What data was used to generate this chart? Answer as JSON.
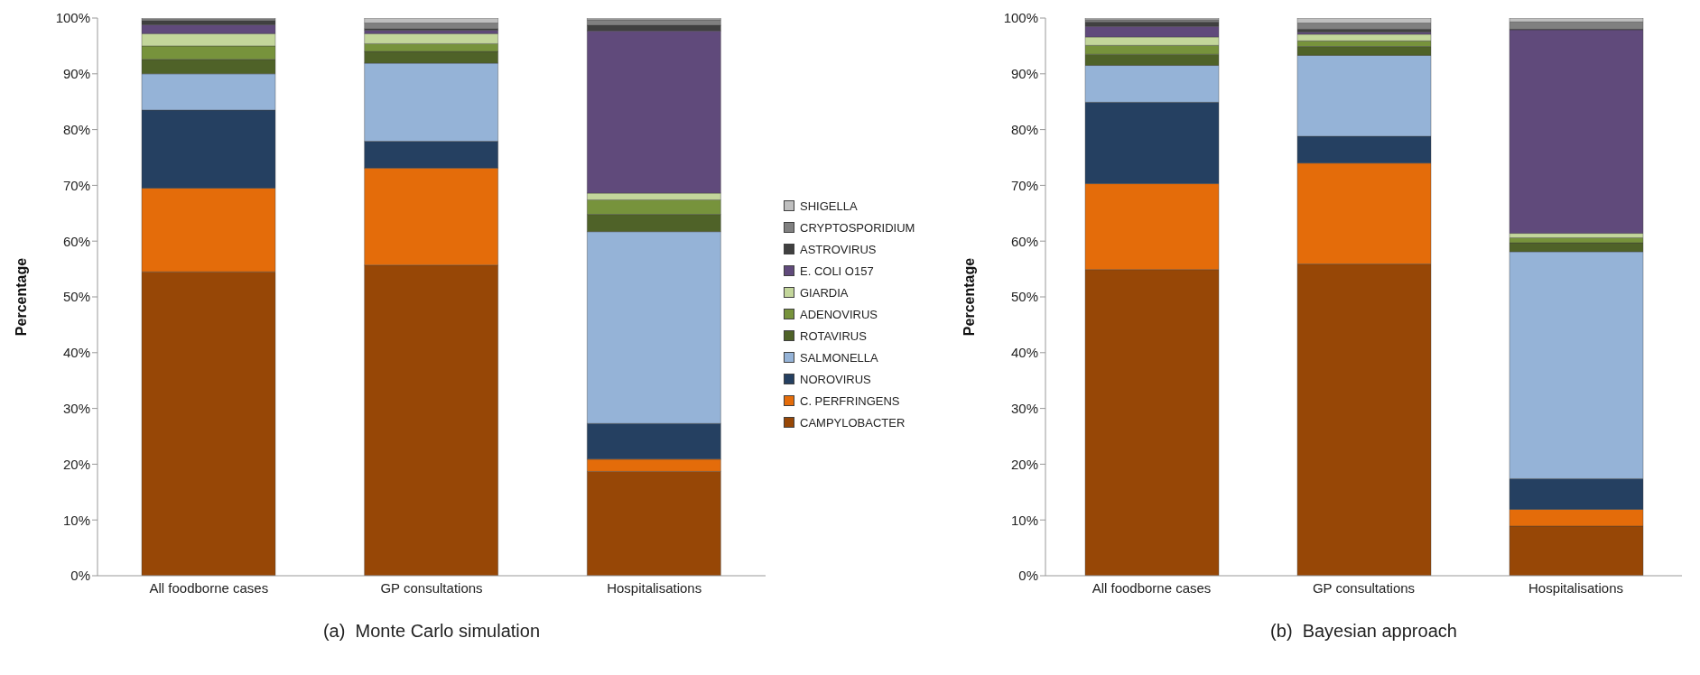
{
  "chart_data": [
    {
      "type": "bar",
      "title": "(a)  Monte Carlo simulation",
      "ylabel": "Percentage",
      "stacked": true,
      "legend": "right",
      "grid": false,
      "categories": [
        "All foodborne cases",
        "GP consultations",
        "Hospitalisations"
      ],
      "ylim": [
        0,
        100
      ],
      "yticks": [
        {
          "value": 0,
          "label": "0%"
        },
        {
          "value": 10,
          "label": "10%"
        },
        {
          "value": 20,
          "label": "20%"
        },
        {
          "value": 30,
          "label": "30%"
        },
        {
          "value": 40,
          "label": "40%"
        },
        {
          "value": 50,
          "label": "50%"
        },
        {
          "value": 60,
          "label": "60%"
        },
        {
          "value": 70,
          "label": "70%"
        },
        {
          "value": 80,
          "label": "80%"
        },
        {
          "value": 90,
          "label": "90%"
        },
        {
          "value": 100,
          "label": "100%"
        }
      ],
      "series": [
        {
          "name": "CAMPYLOBACTER",
          "color": "#974706",
          "values": [
            54.5,
            55.7,
            18.7
          ]
        },
        {
          "name": "C. PERFRINGENS",
          "color": "#e46c0a",
          "values": [
            15.0,
            17.4,
            2.2
          ]
        },
        {
          "name": "NOROVIRUS",
          "color": "#254061",
          "values": [
            14.0,
            4.8,
            6.4
          ]
        },
        {
          "name": "SALMONELLA",
          "color": "#95b3d7",
          "values": [
            6.5,
            14.0,
            34.4
          ]
        },
        {
          "name": "ROTAVIRUS",
          "color": "#4f6228",
          "values": [
            2.6,
            2.1,
            3.1
          ]
        },
        {
          "name": "ADENOVIRUS",
          "color": "#77933c",
          "values": [
            2.4,
            1.4,
            2.6
          ]
        },
        {
          "name": "GIARDIA",
          "color": "#c3d69b",
          "values": [
            2.2,
            1.8,
            1.2
          ]
        },
        {
          "name": "E. COLI O157",
          "color": "#604a7b",
          "values": [
            1.6,
            0.6,
            29.1
          ]
        },
        {
          "name": "ASTROVIRUS",
          "color": "#404040",
          "values": [
            0.7,
            0.3,
            1.0
          ]
        },
        {
          "name": "CRYPTOSPORIDIUM",
          "color": "#808080",
          "values": [
            0.3,
            1.0,
            1.0
          ]
        },
        {
          "name": "SHIGELLA",
          "color": "#bfbfbf",
          "values": [
            0.2,
            0.9,
            0.3
          ]
        }
      ]
    },
    {
      "type": "bar",
      "title": "(b)  Bayesian approach",
      "ylabel": "Percentage",
      "stacked": true,
      "grid": false,
      "categories": [
        "All foodborne cases",
        "GP consultations",
        "Hospitalisations"
      ],
      "ylim": [
        0,
        100
      ],
      "yticks": [
        {
          "value": 0,
          "label": "0%"
        },
        {
          "value": 10,
          "label": "10%"
        },
        {
          "value": 20,
          "label": "20%"
        },
        {
          "value": 30,
          "label": "30%"
        },
        {
          "value": 40,
          "label": "40%"
        },
        {
          "value": 50,
          "label": "50%"
        },
        {
          "value": 60,
          "label": "60%"
        },
        {
          "value": 70,
          "label": "70%"
        },
        {
          "value": 80,
          "label": "80%"
        },
        {
          "value": 90,
          "label": "90%"
        },
        {
          "value": 100,
          "label": "100%"
        }
      ],
      "series": [
        {
          "color": "#974706",
          "values": [
            54.9,
            55.9,
            8.9
          ]
        },
        {
          "color": "#e46c0a",
          "values": [
            15.4,
            18.1,
            3.0
          ]
        },
        {
          "color": "#254061",
          "values": [
            14.6,
            4.8,
            5.5
          ]
        },
        {
          "color": "#95b3d7",
          "values": [
            6.6,
            14.5,
            40.7
          ]
        },
        {
          "color": "#4f6228",
          "values": [
            2.0,
            1.6,
            1.6
          ]
        },
        {
          "color": "#77933c",
          "values": [
            1.6,
            1.0,
            0.9
          ]
        },
        {
          "color": "#c3d69b",
          "values": [
            1.5,
            1.2,
            0.8
          ]
        },
        {
          "color": "#604a7b",
          "values": [
            1.9,
            0.4,
            36.5
          ]
        },
        {
          "color": "#404040",
          "values": [
            0.8,
            0.5,
            0.1
          ]
        },
        {
          "color": "#808080",
          "values": [
            0.4,
            1.1,
            1.3
          ]
        },
        {
          "color": "#bfbfbf",
          "values": [
            0.3,
            0.9,
            0.7
          ]
        }
      ]
    }
  ]
}
